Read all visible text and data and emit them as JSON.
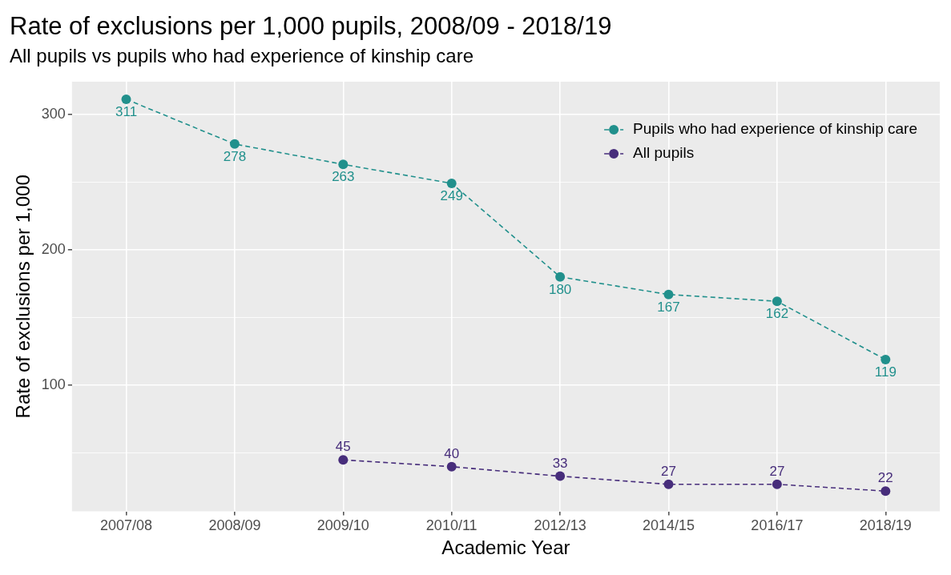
{
  "chart_data": {
    "type": "line",
    "title": "Rate of exclusions per 1,000 pupils, 2008/09 - 2018/19",
    "subtitle": "All pupils vs pupils who had experience of kinship care",
    "xlabel": "Academic Year",
    "ylabel": "Rate of exclusions per 1,000",
    "categories": [
      "2007/08",
      "2008/09",
      "2009/10",
      "2010/11",
      "2012/13",
      "2014/15",
      "2016/17",
      "2018/19"
    ],
    "series": [
      {
        "name": "Pupils who had experience of kinship care",
        "color": "#21908c",
        "values": [
          311,
          278,
          263,
          249,
          180,
          167,
          162,
          119
        ]
      },
      {
        "name": "All pupils",
        "color": "#472d7b",
        "values": [
          null,
          null,
          45,
          40,
          33,
          27,
          27,
          22
        ]
      }
    ],
    "ylim": [
      7,
      324
    ],
    "yticks": [
      {
        "value": 50,
        "label": null
      },
      100,
      {
        "value": 150,
        "label": null
      },
      200,
      {
        "value": 250,
        "label": null
      },
      300
    ],
    "grid": true,
    "legend": "top right",
    "marker": "circle",
    "line_style": "dashed",
    "data_labels": true
  }
}
